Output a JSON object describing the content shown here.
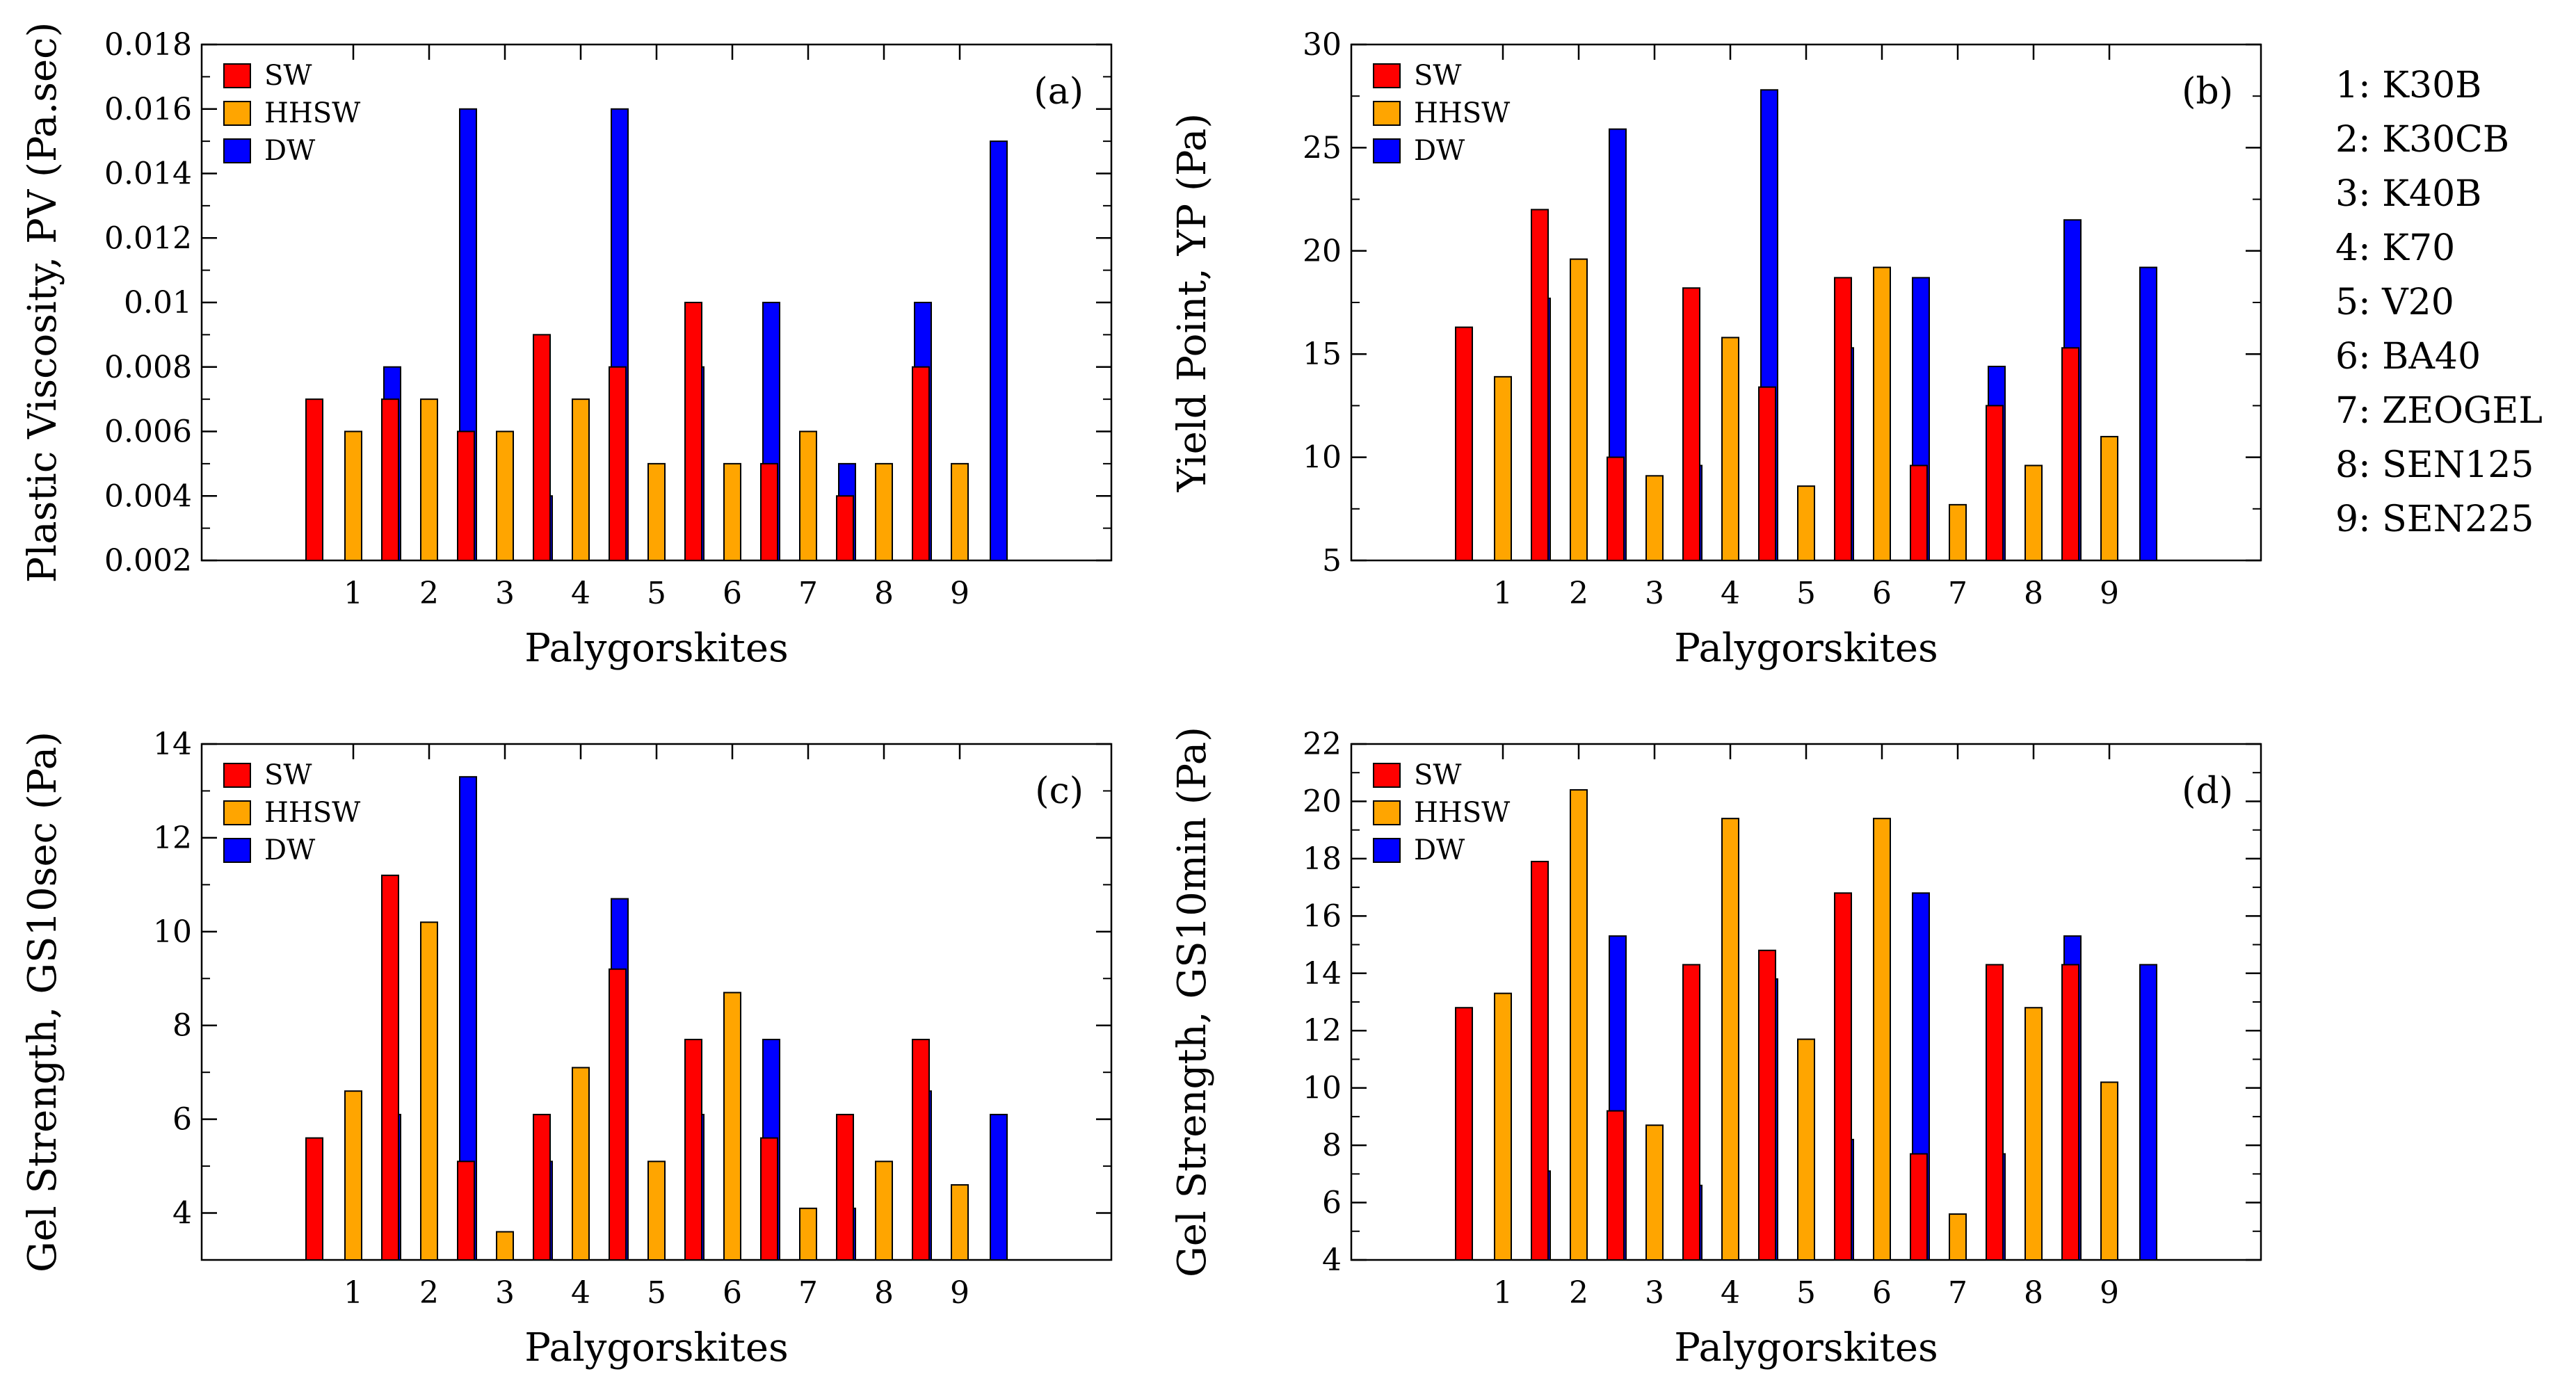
{
  "figure": {
    "series_colors": {
      "SW": "#ff0000",
      "HHSW": "#ffa500",
      "DW": "#0000ff"
    },
    "key": [
      "1: K30B",
      "2: K30CB",
      "3: K40B",
      "4: K70",
      "5: V20",
      "6: BA40",
      "7: ZEOGEL",
      "8: SEN125",
      "9: SEN225"
    ]
  },
  "chart_data": [
    {
      "type": "bar",
      "panel": "(a)",
      "xlabel": "Palygorskites",
      "ylabel": "Plastic Viscosity, PV (Pa.sec)",
      "categories": [
        "1",
        "2",
        "3",
        "4",
        "5",
        "6",
        "7",
        "8",
        "9"
      ],
      "ylim": [
        0.002,
        0.018
      ],
      "yticks": [
        0.002,
        0.004,
        0.006,
        0.008,
        0.01,
        0.012,
        0.014,
        0.016,
        0.018
      ],
      "yticklabels": [
        "0.002",
        "0.004",
        "0.006",
        "0.008",
        "0.01",
        "0.012",
        "0.014",
        "0.016",
        "0.018"
      ],
      "legend_position": "top-left",
      "series": [
        {
          "name": "SW",
          "values": [
            0.007,
            0.007,
            0.006,
            0.009,
            0.008,
            0.01,
            0.005,
            0.004,
            0.008
          ]
        },
        {
          "name": "HHSW",
          "values": [
            0.006,
            0.007,
            0.006,
            0.007,
            0.005,
            0.005,
            0.006,
            0.005,
            0.005
          ]
        },
        {
          "name": "DW",
          "values": [
            0.008,
            0.016,
            0.004,
            0.016,
            0.008,
            0.01,
            0.005,
            0.01,
            0.015
          ]
        }
      ]
    },
    {
      "type": "bar",
      "panel": "(b)",
      "xlabel": "Palygorskites",
      "ylabel": "Yield Point, YP (Pa)",
      "categories": [
        "1",
        "2",
        "3",
        "4",
        "5",
        "6",
        "7",
        "8",
        "9"
      ],
      "ylim": [
        5,
        30
      ],
      "yticks": [
        5,
        10,
        15,
        20,
        25,
        30
      ],
      "yticklabels": [
        "5",
        "10",
        "15",
        "20",
        "25",
        "30"
      ],
      "legend_position": "top-left",
      "series": [
        {
          "name": "SW",
          "values": [
            16.3,
            22.0,
            10.0,
            18.2,
            13.4,
            18.7,
            9.6,
            12.5,
            15.3
          ]
        },
        {
          "name": "HHSW",
          "values": [
            13.9,
            19.6,
            9.1,
            15.8,
            8.6,
            19.2,
            7.7,
            9.6,
            11.0
          ]
        },
        {
          "name": "DW",
          "values": [
            17.7,
            25.9,
            9.6,
            27.8,
            15.3,
            18.7,
            14.4,
            21.5,
            19.2
          ]
        }
      ]
    },
    {
      "type": "bar",
      "panel": "(c)",
      "xlabel": "Palygorskites",
      "ylabel": "Gel Strength, GS10sec (Pa)",
      "categories": [
        "1",
        "2",
        "3",
        "4",
        "5",
        "6",
        "7",
        "8",
        "9"
      ],
      "ylim": [
        3,
        14
      ],
      "yticks": [
        4,
        6,
        8,
        10,
        12,
        14
      ],
      "yticklabels": [
        "4",
        "6",
        "8",
        "10",
        "12",
        "14"
      ],
      "legend_position": "top-left",
      "series": [
        {
          "name": "SW",
          "values": [
            5.6,
            11.2,
            5.1,
            6.1,
            9.2,
            7.7,
            5.6,
            6.1,
            7.7
          ]
        },
        {
          "name": "HHSW",
          "values": [
            6.6,
            10.2,
            3.6,
            7.1,
            5.1,
            8.7,
            4.1,
            5.1,
            4.6
          ]
        },
        {
          "name": "DW",
          "values": [
            6.1,
            13.3,
            5.1,
            10.7,
            6.1,
            7.7,
            4.1,
            6.6,
            6.1
          ]
        }
      ]
    },
    {
      "type": "bar",
      "panel": "(d)",
      "xlabel": "Palygorskites",
      "ylabel": "Gel Strength, GS10min (Pa)",
      "categories": [
        "1",
        "2",
        "3",
        "4",
        "5",
        "6",
        "7",
        "8",
        "9"
      ],
      "ylim": [
        4,
        22
      ],
      "yticks": [
        4,
        6,
        8,
        10,
        12,
        14,
        16,
        18,
        20,
        22
      ],
      "yticklabels": [
        "4",
        "6",
        "8",
        "10",
        "12",
        "14",
        "16",
        "18",
        "20",
        "22"
      ],
      "legend_position": "top-left",
      "series": [
        {
          "name": "SW",
          "values": [
            12.8,
            17.9,
            9.2,
            14.3,
            14.8,
            16.8,
            7.7,
            14.3,
            14.3
          ]
        },
        {
          "name": "HHSW",
          "values": [
            13.3,
            20.4,
            8.7,
            19.4,
            11.7,
            19.4,
            5.6,
            12.8,
            10.2
          ]
        },
        {
          "name": "DW",
          "values": [
            7.1,
            15.3,
            6.6,
            13.8,
            8.2,
            16.8,
            7.7,
            15.3,
            14.3
          ]
        }
      ]
    }
  ]
}
